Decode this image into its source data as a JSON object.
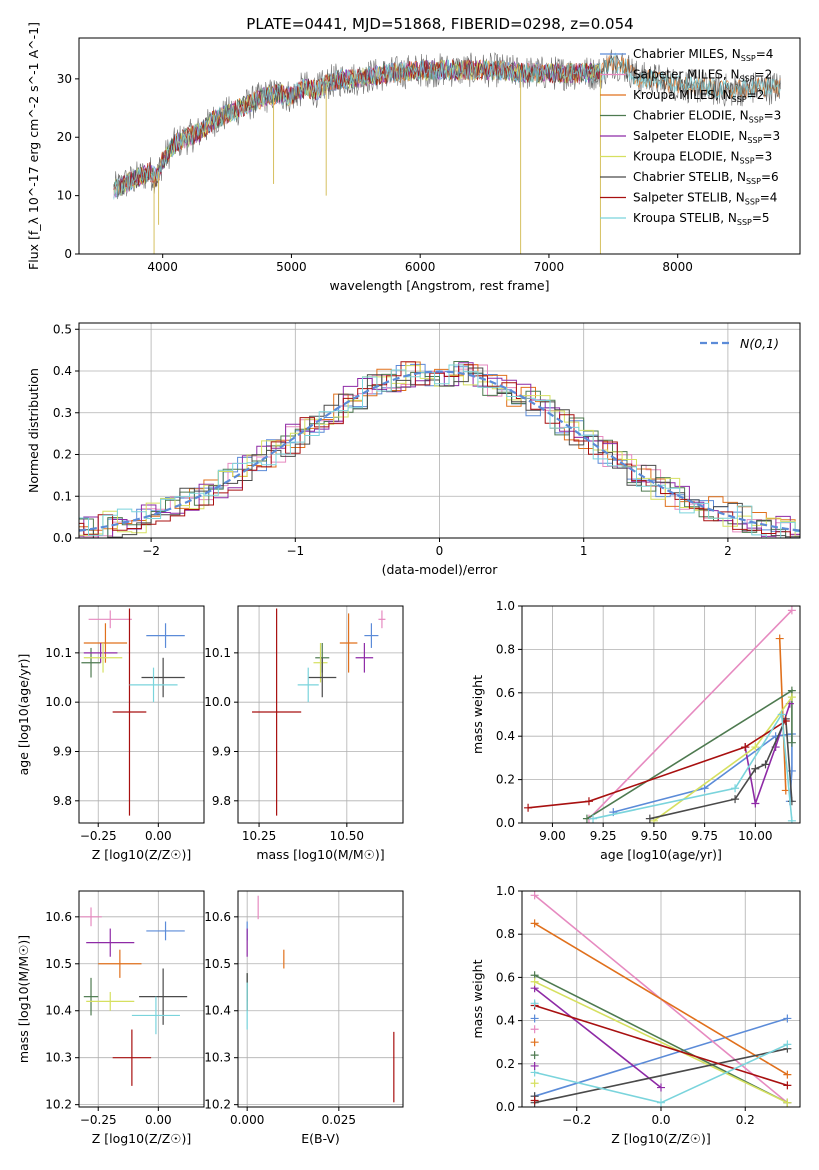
{
  "title": "PLATE=0441, MJD=51868, FIBERID=0298, z=0.054",
  "colors": {
    "c0": "#5b8bd8",
    "c1": "#e68ac0",
    "c2": "#e0701c",
    "c3": "#4e7a50",
    "c4": "#8e2aa6",
    "c5": "#d6e060",
    "c6": "#4a4a4a",
    "c7": "#a81010",
    "c8": "#7ad4dc"
  },
  "legend_spec": [
    {
      "imf": "Chabrier",
      "lib": "MILES",
      "n": "4",
      "color": "#5b8bd8"
    },
    {
      "imf": "Salpeter",
      "lib": "MILES",
      "n": "2",
      "color": "#e68ac0"
    },
    {
      "imf": "Kroupa",
      "lib": "MILES",
      "n": "2",
      "color": "#e0701c"
    },
    {
      "imf": "Chabrier",
      "lib": "ELODIE",
      "n": "3",
      "color": "#4e7a50"
    },
    {
      "imf": "Salpeter",
      "lib": "ELODIE",
      "n": "3",
      "color": "#8e2aa6"
    },
    {
      "imf": "Kroupa",
      "lib": "ELODIE",
      "n": "3",
      "color": "#d6e060"
    },
    {
      "imf": "Chabrier",
      "lib": "STELIB",
      "n": "6",
      "color": "#4a4a4a"
    },
    {
      "imf": "Salpeter",
      "lib": "STELIB",
      "n": "4",
      "color": "#a81010"
    },
    {
      "imf": "Kroupa",
      "lib": "STELIB",
      "n": "5",
      "color": "#7ad4dc"
    }
  ],
  "chart_data": [
    {
      "type": "line",
      "panel": "spectrum",
      "xlabel": "wavelength [Angstrom, rest frame]",
      "ylabel": "Flux [f_λ 10^-17 erg cm^-2 s^-1 A^-1]",
      "xlim": [
        3350,
        8950
      ],
      "ylim": [
        0,
        37
      ],
      "xticks": [
        4000,
        5000,
        6000,
        7000,
        8000
      ],
      "yticks": [
        0,
        10,
        20,
        30
      ],
      "continuum": [
        [
          3620,
          11
        ],
        [
          3700,
          12
        ],
        [
          3800,
          13
        ],
        [
          3900,
          14
        ],
        [
          3950,
          13
        ],
        [
          4000,
          16
        ],
        [
          4100,
          19
        ],
        [
          4200,
          20
        ],
        [
          4300,
          21
        ],
        [
          4400,
          23
        ],
        [
          4500,
          24
        ],
        [
          4600,
          25
        ],
        [
          4700,
          26
        ],
        [
          4800,
          27
        ],
        [
          4900,
          27.5
        ],
        [
          5000,
          27
        ],
        [
          5100,
          28.5
        ],
        [
          5200,
          28
        ],
        [
          5300,
          29.5
        ],
        [
          5400,
          30
        ],
        [
          5500,
          30
        ],
        [
          5600,
          30.5
        ],
        [
          5800,
          31
        ],
        [
          6000,
          31.5
        ],
        [
          6200,
          31.5
        ],
        [
          6400,
          31.5
        ],
        [
          6600,
          31.5
        ],
        [
          6800,
          31
        ],
        [
          7000,
          31
        ],
        [
          7200,
          31
        ],
        [
          7400,
          31
        ],
        [
          7500,
          33
        ],
        [
          7600,
          32
        ],
        [
          7700,
          30
        ],
        [
          7800,
          30
        ],
        [
          8000,
          29
        ],
        [
          8200,
          28.5
        ],
        [
          8400,
          28
        ],
        [
          8600,
          28.5
        ],
        [
          8800,
          28.5
        ]
      ],
      "model_ranges": [
        [
          3620,
          7400
        ],
        [
          3620,
          7400
        ],
        [
          3620,
          8800
        ],
        [
          3620,
          7400
        ],
        [
          3620,
          7400
        ],
        [
          3620,
          7400
        ],
        [
          3620,
          8800
        ],
        [
          3620,
          7400
        ],
        [
          3620,
          8800
        ]
      ],
      "dips": [
        [
          3933,
          0
        ],
        [
          3968,
          5
        ],
        [
          4861,
          12
        ],
        [
          5270,
          10
        ],
        [
          6780,
          0
        ],
        [
          7400,
          0
        ]
      ]
    },
    {
      "type": "step",
      "panel": "residual-histogram",
      "xlabel": "(data-model)/error",
      "ylabel": "Normed distribution",
      "xlim": [
        -2.5,
        2.5
      ],
      "ylim": [
        0,
        0.515
      ],
      "xticks": [
        -2,
        -1,
        0,
        1,
        2
      ],
      "xtick_labels": [
        "−2",
        "−1",
        "0",
        "1",
        "2"
      ],
      "yticks": [
        0,
        0.1,
        0.2,
        0.3,
        0.4,
        0.5
      ],
      "ytick_labels": [
        "0.0",
        "0.1",
        "0.2",
        "0.3",
        "0.4",
        "0.5"
      ],
      "bin_width": 0.1,
      "reference_label": "N(0,1)",
      "reference_color": "#5b8bd8"
    },
    {
      "type": "errorbar",
      "panel": "age-vs-Z",
      "xlabel": "Z [log10(Z/Z☉)]",
      "ylabel": "age [log10(age/yr)]",
      "xlim": [
        -0.33,
        0.19
      ],
      "ylim": [
        9.755,
        10.195
      ],
      "xticks": [
        -0.25,
        0.0
      ],
      "xtick_labels": [
        "−0.25",
        "0.00"
      ],
      "yticks": [
        9.8,
        9.9,
        10.0,
        10.1
      ],
      "ytick_labels": [
        "9.8",
        "9.9",
        "10.0",
        "10.1"
      ],
      "points": [
        {
          "x": 0.03,
          "xerr": 0.08,
          "y": 10.135,
          "yerr": 0.025
        },
        {
          "x": -0.2,
          "xerr": 0.09,
          "y": 10.168,
          "yerr": 0.018
        },
        {
          "x": -0.22,
          "xerr": 0.09,
          "y": 10.12,
          "yerr": 0.04
        },
        {
          "x": -0.28,
          "xerr": 0.04,
          "y": 10.08,
          "yerr": 0.03
        },
        {
          "x": -0.24,
          "xerr": 0.07,
          "y": 10.1,
          "yerr": 0.02
        },
        {
          "x": -0.23,
          "xerr": 0.08,
          "y": 10.09,
          "yerr": 0.03
        },
        {
          "x": 0.02,
          "xerr": 0.09,
          "y": 10.05,
          "yerr": 0.04
        },
        {
          "x": -0.12,
          "xerr": 0.07,
          "y": 9.98,
          "yerr": 0.21
        },
        {
          "x": -0.02,
          "xerr": 0.1,
          "y": 10.035,
          "yerr": 0.035
        }
      ]
    },
    {
      "type": "errorbar",
      "panel": "age-vs-mass",
      "xlabel": "mass [log10(M/M☉)]",
      "xlim": [
        10.19,
        10.66
      ],
      "ylim": [
        9.755,
        10.195
      ],
      "xticks": [
        10.25,
        10.5
      ],
      "xtick_labels": [
        "10.25",
        "10.50"
      ],
      "yticks": [
        9.8,
        9.9,
        10.0,
        10.1
      ],
      "ytick_labels": [
        "9.8",
        "9.9",
        "10.0",
        "10.1"
      ],
      "points": [
        {
          "x": 10.57,
          "xerr": 0.02,
          "y": 10.135,
          "yerr": 0.025
        },
        {
          "x": 10.6,
          "xerr": 0.01,
          "y": 10.168,
          "yerr": 0.018
        },
        {
          "x": 10.505,
          "xerr": 0.025,
          "y": 10.12,
          "yerr": 0.06
        },
        {
          "x": 10.43,
          "xerr": 0.02,
          "y": 10.09,
          "yerr": 0.03
        },
        {
          "x": 10.55,
          "xerr": 0.025,
          "y": 10.09,
          "yerr": 0.03
        },
        {
          "x": 10.425,
          "xerr": 0.02,
          "y": 10.08,
          "yerr": 0.04
        },
        {
          "x": 10.43,
          "xerr": 0.04,
          "y": 10.05,
          "yerr": 0.04
        },
        {
          "x": 10.3,
          "xerr": 0.07,
          "y": 9.98,
          "yerr": 0.21
        },
        {
          "x": 10.39,
          "xerr": 0.03,
          "y": 10.035,
          "yerr": 0.035
        }
      ]
    },
    {
      "type": "line",
      "panel": "mass-weight-vs-age",
      "xlabel": "age [log10(age/yr)]",
      "ylabel": "mass weight",
      "xlim": [
        8.85,
        10.22
      ],
      "ylim": [
        0,
        1
      ],
      "xticks": [
        9.0,
        9.25,
        9.5,
        9.75,
        10.0
      ],
      "xtick_labels": [
        "9.00",
        "9.25",
        "9.50",
        "9.75",
        "10.00"
      ],
      "yticks": [
        0,
        0.2,
        0.4,
        0.6,
        0.8,
        1.0
      ],
      "ytick_labels": [
        "0.0",
        "0.2",
        "0.4",
        "0.6",
        "0.8",
        "1.0"
      ],
      "series": [
        {
          "x": [
            9.3,
            9.75,
            10.1,
            10.18,
            10.18,
            10.17
          ],
          "y": [
            0.05,
            0.16,
            0.4,
            0.41,
            0.24,
            0.1
          ]
        },
        {
          "x": [
            9.18,
            10.18
          ],
          "y": [
            0.02,
            0.98
          ]
        },
        {
          "x": [
            10.12,
            10.15
          ],
          "y": [
            0.85,
            0.15
          ]
        },
        {
          "x": [
            9.17,
            10.18,
            10.18
          ],
          "y": [
            0.02,
            0.61,
            0.37
          ]
        },
        {
          "x": [
            9.95,
            10.0,
            10.1,
            10.17
          ],
          "y": [
            0.35,
            0.09,
            0.35,
            0.55
          ]
        },
        {
          "x": [
            9.5,
            10.0,
            10.18
          ],
          "y": [
            0.01,
            0.35,
            0.58
          ]
        },
        {
          "x": [
            9.48,
            9.9,
            10.0,
            10.05,
            10.15,
            10.18
          ],
          "y": [
            0.02,
            0.11,
            0.25,
            0.27,
            0.48,
            0.1
          ]
        },
        {
          "x": [
            8.88,
            9.18,
            9.95,
            10.15
          ],
          "y": [
            0.07,
            0.1,
            0.35,
            0.47
          ]
        },
        {
          "x": [
            9.2,
            9.9,
            10.13,
            10.18
          ],
          "y": [
            0.02,
            0.16,
            0.5,
            0.01
          ]
        }
      ]
    },
    {
      "type": "errorbar",
      "panel": "mass-vs-Z",
      "xlabel": "Z [log10(Z/Z☉)]",
      "ylabel": "mass [log10(M/M☉)]",
      "xlim": [
        -0.33,
        0.19
      ],
      "ylim": [
        10.195,
        10.655
      ],
      "xticks": [
        -0.25,
        0.0
      ],
      "xtick_labels": [
        "−0.25",
        "0.00"
      ],
      "yticks": [
        10.2,
        10.3,
        10.4,
        10.5,
        10.6
      ],
      "ytick_labels": [
        "10.2",
        "10.3",
        "10.4",
        "10.5",
        "10.6"
      ],
      "points": [
        {
          "x": 0.03,
          "xerr": 0.08,
          "y": 10.57,
          "yerr": 0.02
        },
        {
          "x": -0.28,
          "xerr": 0.045,
          "y": 10.6,
          "yerr": 0.02
        },
        {
          "x": -0.16,
          "xerr": 0.09,
          "y": 10.5,
          "yerr": 0.03
        },
        {
          "x": -0.28,
          "xerr": 0.03,
          "y": 10.43,
          "yerr": 0.04
        },
        {
          "x": -0.2,
          "xerr": 0.1,
          "y": 10.545,
          "yerr": 0.03
        },
        {
          "x": -0.2,
          "xerr": 0.1,
          "y": 10.42,
          "yerr": 0.02
        },
        {
          "x": 0.02,
          "xerr": 0.1,
          "y": 10.43,
          "yerr": 0.06
        },
        {
          "x": -0.11,
          "xerr": 0.08,
          "y": 10.3,
          "yerr": 0.06
        },
        {
          "x": -0.01,
          "xerr": 0.1,
          "y": 10.39,
          "yerr": 0.04
        }
      ]
    },
    {
      "type": "errorbar",
      "panel": "mass-vs-EBV",
      "xlabel": "E(B-V)",
      "xlim": [
        -0.0025,
        0.0425
      ],
      "ylim": [
        10.195,
        10.655
      ],
      "xticks": [
        0.0,
        0.025
      ],
      "xtick_labels": [
        "0.000",
        "0.025"
      ],
      "yticks": [
        10.2,
        10.3,
        10.4,
        10.5,
        10.6
      ],
      "ytick_labels": [
        "10.2",
        "10.3",
        "10.4",
        "10.5",
        "10.6"
      ],
      "points": [
        {
          "x": 0.0,
          "xerr": 0,
          "y": 10.57,
          "yerr": 0.02
        },
        {
          "x": 0.003,
          "xerr": 0,
          "y": 10.62,
          "yerr": 0.025
        },
        {
          "x": 0.01,
          "xerr": 0,
          "y": 10.51,
          "yerr": 0.02
        },
        {
          "x": 0.0,
          "xerr": 0,
          "y": 10.45,
          "yerr": 0.03
        },
        {
          "x": 0.0,
          "xerr": 0,
          "y": 10.545,
          "yerr": 0.03
        },
        {
          "x": 0.0,
          "xerr": 0,
          "y": 10.43,
          "yerr": 0.03
        },
        {
          "x": 0.0,
          "xerr": 0,
          "y": 10.44,
          "yerr": 0.04
        },
        {
          "x": 0.04,
          "xerr": 0,
          "y": 10.28,
          "yerr": 0.075
        },
        {
          "x": 0.0,
          "xerr": 0,
          "y": 10.41,
          "yerr": 0.05
        }
      ]
    },
    {
      "type": "line",
      "panel": "mass-weight-vs-Z",
      "xlabel": "Z [log10(Z/Z☉)]",
      "ylabel": "mass weight",
      "xlim": [
        -0.33,
        0.33
      ],
      "ylim": [
        0,
        1
      ],
      "xticks": [
        -0.2,
        0.0,
        0.2
      ],
      "xtick_labels": [
        "−0.2",
        "0.0",
        "0.2"
      ],
      "yticks": [
        0,
        0.2,
        0.4,
        0.6,
        0.8,
        1.0
      ],
      "ytick_labels": [
        "0.0",
        "0.2",
        "0.4",
        "0.6",
        "0.8",
        "1.0"
      ],
      "series": [
        {
          "x": [
            -0.3,
            0.3
          ],
          "y": [
            0.05,
            0.41
          ]
        },
        {
          "x": [
            -0.3,
            0.3
          ],
          "y": [
            0.98,
            0.02
          ]
        },
        {
          "x": [
            -0.3,
            0.3
          ],
          "y": [
            0.85,
            0.15
          ]
        },
        {
          "x": [
            -0.3,
            0.3
          ],
          "y": [
            0.61,
            0.02
          ]
        },
        {
          "x": [
            -0.3,
            0.0
          ],
          "y": [
            0.55,
            0.09
          ]
        },
        {
          "x": [
            -0.3,
            0.3
          ],
          "y": [
            0.58,
            0.02
          ]
        },
        {
          "x": [
            -0.3,
            0.3
          ],
          "y": [
            0.02,
            0.27
          ]
        },
        {
          "x": [
            -0.3,
            0.3
          ],
          "y": [
            0.47,
            0.1
          ]
        },
        {
          "x": [
            -0.3,
            0.0,
            0.3
          ],
          "y": [
            0.16,
            0.02,
            0.29
          ]
        }
      ],
      "extra_points_x": -0.3,
      "extra_points_y": [
        0.48,
        0.41,
        0.36,
        0.3,
        0.24,
        0.19,
        0.11,
        0.05,
        0.03
      ]
    }
  ]
}
